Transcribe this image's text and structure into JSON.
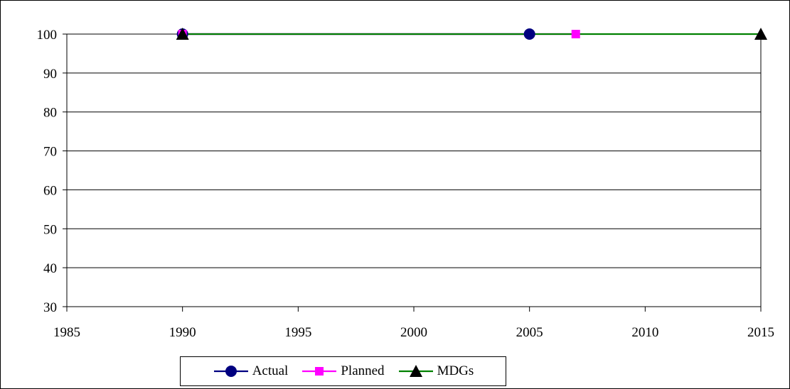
{
  "chart_data": {
    "type": "line",
    "title": "",
    "xlabel": "",
    "ylabel": "",
    "xlim": [
      1985,
      2015
    ],
    "ylim": [
      30,
      100
    ],
    "x_ticks": [
      1985,
      1990,
      1995,
      2000,
      2005,
      2010,
      2015
    ],
    "y_ticks": [
      30,
      40,
      50,
      60,
      70,
      80,
      90,
      100
    ],
    "grid": "horizontal",
    "legend_position": "bottom",
    "series": [
      {
        "name": "Actual",
        "color": "#000080",
        "marker": "circle",
        "line": "#000080",
        "points": [
          {
            "x": 1990,
            "y": 100
          },
          {
            "x": 2005,
            "y": 100
          }
        ]
      },
      {
        "name": "Planned",
        "color": "#ff00ff",
        "marker": "square",
        "line": "#ff00ff",
        "points": [
          {
            "x": 1990,
            "y": 100
          },
          {
            "x": 2007,
            "y": 100
          }
        ]
      },
      {
        "name": "MDGs",
        "color": "#000000",
        "marker": "triangle",
        "line": "#008000",
        "points": [
          {
            "x": 1990,
            "y": 100
          },
          {
            "x": 2015,
            "y": 100
          }
        ]
      }
    ]
  }
}
